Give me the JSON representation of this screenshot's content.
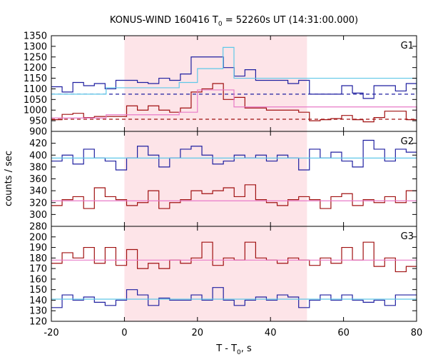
{
  "chart_data": {
    "type": "line",
    "title": "KONUS-WIND 160416 T",
    "title_sub": "0",
    "title_rest": " = 52260s UT (14:31:00.000)",
    "xlabel": "T - T",
    "xlabel_sub": "0",
    "xlabel_rest": ", s",
    "ylabel": "counts / sec",
    "xlim": [
      -20,
      80
    ],
    "x_ticks": [
      -20,
      0,
      20,
      40,
      60,
      80
    ],
    "shaded_interval": [
      0,
      50
    ],
    "colors": {
      "blue": "#1f1fa0",
      "red": "#a01010",
      "cyan": "#5fc8e8",
      "pink": "#e87ac8",
      "shade": "#fde4e8"
    },
    "panels": [
      {
        "label": "G1",
        "ylim": [
          900,
          1350
        ],
        "y_ticks": [
          900,
          950,
          1000,
          1050,
          1100,
          1150,
          1200,
          1250,
          1300,
          1350
        ],
        "series": [
          {
            "color": "blue",
            "step": 2.944,
            "x": [
              -20,
              -17.056,
              -14.112,
              -11.168,
              -8.224,
              -5.28,
              -2.336,
              0.608,
              3.552,
              6.496,
              9.44,
              12.384,
              15.328,
              18.272,
              21.216,
              24.16,
              27.104,
              30.048,
              32.992,
              35.936,
              38.88,
              41.824,
              44.768,
              47.712,
              50.656,
              53.6,
              56.544,
              59.488,
              62.432,
              65.376,
              68.32,
              71.264,
              74.208,
              77.152
            ],
            "y": [
              1110,
              1085,
              1130,
              1115,
              1125,
              1100,
              1140,
              1140,
              1130,
              1125,
              1150,
              1140,
              1170,
              1250,
              1250,
              1250,
              1200,
              1160,
              1190,
              1140,
              1140,
              1140,
              1125,
              1140,
              1075,
              1075,
              1075,
              1115,
              1080,
              1055,
              1115,
              1115,
              1090,
              1125
            ]
          },
          {
            "color": "red",
            "step": 2.944,
            "x": [
              -20,
              -17.056,
              -14.112,
              -11.168,
              -8.224,
              -5.28,
              -2.336,
              0.608,
              3.552,
              6.496,
              9.44,
              12.384,
              15.328,
              18.272,
              21.216,
              24.16,
              27.104,
              30.048,
              32.992,
              35.936,
              38.88,
              41.824,
              44.768,
              47.712,
              50.656,
              53.6,
              56.544,
              59.488,
              62.432,
              65.376,
              68.32,
              71.264,
              74.208,
              77.152
            ],
            "y": [
              955,
              980,
              985,
              965,
              970,
              970,
              970,
              1020,
              1000,
              1020,
              1000,
              990,
              1010,
              1085,
              1100,
              1125,
              1050,
              1060,
              1010,
              1010,
              1000,
              1000,
              1000,
              990,
              950,
              955,
              960,
              975,
              955,
              945,
              965,
              995,
              995,
              955
            ]
          },
          {
            "color": "cyan",
            "step": 5.0,
            "x": [
              -20,
              -5,
              0,
              15,
              20,
              27,
              30,
              50,
              80
            ],
            "y": [
              1075,
              1105,
              1105,
              1130,
              1195,
              1295,
              1150,
              1150,
              1075
            ]
          },
          {
            "color": "pink",
            "step": 5.0,
            "x": [
              -20,
              -5,
              0,
              15,
              20,
              27,
              30,
              50,
              80
            ],
            "y": [
              963,
              978,
              978,
              990,
              1095,
              1095,
              1015,
              1015,
              963
            ]
          }
        ],
        "background": [
          {
            "color": "blue",
            "y": 1075
          },
          {
            "color": "red",
            "y": 957
          }
        ]
      },
      {
        "label": "G2",
        "ylim": [
          280,
          440
        ],
        "y_ticks": [
          280,
          300,
          320,
          340,
          360,
          380,
          400,
          420
        ],
        "series": [
          {
            "color": "blue",
            "step": 2.944,
            "x": [
              -20,
              -17.056,
              -14.112,
              -11.168,
              -8.224,
              -5.28,
              -2.336,
              0.608,
              3.552,
              6.496,
              9.44,
              12.384,
              15.328,
              18.272,
              21.216,
              24.16,
              27.104,
              30.048,
              32.992,
              35.936,
              38.88,
              41.824,
              44.768,
              47.712,
              50.656,
              53.6,
              56.544,
              59.488,
              62.432,
              65.376,
              68.32,
              71.264,
              74.208,
              77.152
            ],
            "y": [
              390,
              400,
              385,
              410,
              395,
              390,
              375,
              395,
              415,
              400,
              380,
              395,
              410,
              415,
              400,
              385,
              390,
              400,
              395,
              400,
              390,
              400,
              395,
              375,
              410,
              395,
              405,
              390,
              380,
              425,
              410,
              390,
              410,
              405
            ]
          },
          {
            "color": "red",
            "step": 2.944,
            "x": [
              -20,
              -17.056,
              -14.112,
              -11.168,
              -8.224,
              -5.28,
              -2.336,
              0.608,
              3.552,
              6.496,
              9.44,
              12.384,
              15.328,
              18.272,
              21.216,
              24.16,
              27.104,
              30.048,
              32.992,
              35.936,
              38.88,
              41.824,
              44.768,
              47.712,
              50.656,
              53.6,
              56.544,
              59.488,
              62.432,
              65.376,
              68.32,
              71.264,
              74.208,
              77.152
            ],
            "y": [
              315,
              325,
              330,
              310,
              345,
              330,
              325,
              315,
              320,
              340,
              310,
              320,
              325,
              340,
              335,
              340,
              345,
              330,
              350,
              325,
              320,
              315,
              325,
              330,
              325,
              310,
              330,
              335,
              315,
              325,
              320,
              330,
              320,
              340
            ]
          },
          {
            "color": "cyan",
            "step": 100,
            "x": [
              -20,
              80
            ],
            "y": [
              395,
              395
            ]
          },
          {
            "color": "pink",
            "step": 100,
            "x": [
              -20,
              80
            ],
            "y": [
              323,
              323
            ]
          }
        ],
        "background": []
      },
      {
        "label": "G3",
        "ylim": [
          120,
          210
        ],
        "y_ticks": [
          120,
          130,
          140,
          150,
          160,
          170,
          180,
          190,
          200
        ],
        "series": [
          {
            "color": "blue",
            "step": 2.944,
            "x": [
              -20,
              -17.056,
              -14.112,
              -11.168,
              -8.224,
              -5.28,
              -2.336,
              0.608,
              3.552,
              6.496,
              9.44,
              12.384,
              15.328,
              18.272,
              21.216,
              24.16,
              27.104,
              30.048,
              32.992,
              35.936,
              38.88,
              41.824,
              44.768,
              47.712,
              50.656,
              53.6,
              56.544,
              59.488,
              62.432,
              65.376,
              68.32,
              71.264,
              74.208,
              77.152
            ],
            "y": [
              133,
              145,
              140,
              143,
              138,
              135,
              140,
              150,
              145,
              135,
              142,
              140,
              140,
              145,
              140,
              152,
              140,
              135,
              140,
              143,
              140,
              145,
              143,
              133,
              140,
              145,
              140,
              145,
              140,
              138,
              140,
              135,
              145,
              145
            ]
          },
          {
            "color": "red",
            "step": 2.944,
            "x": [
              -20,
              -17.056,
              -14.112,
              -11.168,
              -8.224,
              -5.28,
              -2.336,
              0.608,
              3.552,
              6.496,
              9.44,
              12.384,
              15.328,
              18.272,
              21.216,
              24.16,
              27.104,
              30.048,
              32.992,
              35.936,
              38.88,
              41.824,
              44.768,
              47.712,
              50.656,
              53.6,
              56.544,
              59.488,
              62.432,
              65.376,
              68.32,
              71.264,
              74.208,
              77.152
            ],
            "y": [
              175,
              185,
              180,
              190,
              175,
              190,
              173,
              188,
              170,
              175,
              170,
              178,
              175,
              180,
              195,
              173,
              180,
              178,
              195,
              180,
              178,
              175,
              180,
              178,
              173,
              180,
              175,
              190,
              178,
              195,
              172,
              180,
              167,
              172
            ]
          },
          {
            "color": "cyan",
            "step": 100,
            "x": [
              -20,
              80
            ],
            "y": [
              141,
              141
            ]
          },
          {
            "color": "pink",
            "step": 100,
            "x": [
              -20,
              80
            ],
            "y": [
              178,
              178
            ]
          }
        ],
        "background": []
      }
    ]
  }
}
